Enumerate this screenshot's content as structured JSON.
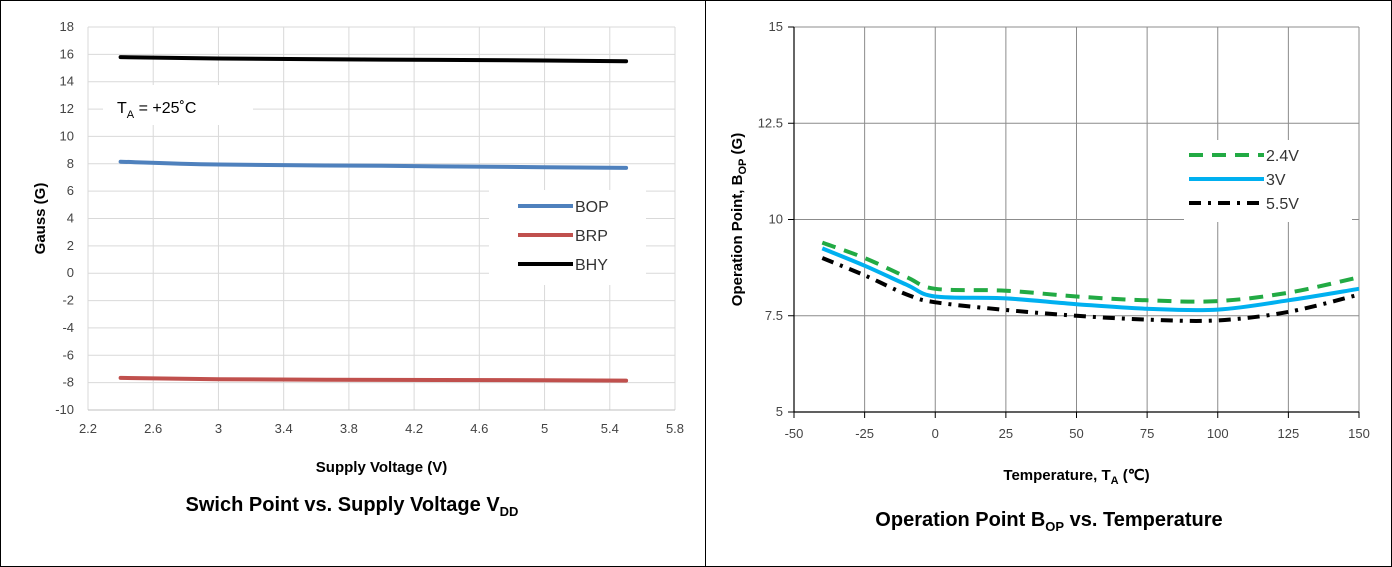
{
  "chart_data": [
    {
      "type": "line",
      "caption": "Swich Point vs. Supply Voltage V",
      "caption_sub": "DD",
      "xlabel": "Supply Voltage (V)",
      "ylabel": "Gauss (G)",
      "xlim": [
        2.2,
        5.8
      ],
      "ylim": [
        -10,
        18
      ],
      "xticks": [
        "2.2",
        "2.6",
        "3",
        "3.4",
        "3.8",
        "4.2",
        "4.6",
        "5",
        "5.4",
        "5.8"
      ],
      "yticks": [
        "-10",
        "-8",
        "-6",
        "-4",
        "-2",
        "0",
        "2",
        "4",
        "6",
        "8",
        "10",
        "12",
        "14",
        "16",
        "18"
      ],
      "grid": true,
      "legend_position": "right",
      "annotation": {
        "prefix": "T",
        "sub": "A",
        "suffix": " = +25˚C"
      },
      "series": [
        {
          "name": "BOP",
          "color": "#4f81bd",
          "x": [
            2.4,
            3,
            4,
            5,
            5.5
          ],
          "y": [
            8.15,
            7.95,
            7.85,
            7.75,
            7.7
          ]
        },
        {
          "name": "BRP",
          "color": "#c0504d",
          "x": [
            2.4,
            3,
            4,
            5,
            5.5
          ],
          "y": [
            -7.65,
            -7.75,
            -7.8,
            -7.82,
            -7.85
          ]
        },
        {
          "name": "BHY",
          "color": "#000000",
          "x": [
            2.4,
            3,
            4,
            5,
            5.5
          ],
          "y": [
            15.8,
            15.7,
            15.62,
            15.55,
            15.5
          ]
        }
      ]
    },
    {
      "type": "line",
      "caption_pre": "Operation Point B",
      "caption_sub": "OP",
      "caption_post": " vs. Temperature",
      "xlabel_pre": "Temperature, T",
      "xlabel_sub": "A",
      "xlabel_post": " (℃)",
      "ylabel_pre": "Operation Point, B",
      "ylabel_sub": "OP",
      "ylabel_post": " (G)",
      "xlim": [
        -50,
        150
      ],
      "ylim": [
        5,
        15
      ],
      "xticks": [
        "-50",
        "-25",
        "0",
        "25",
        "50",
        "75",
        "100",
        "125",
        "150"
      ],
      "yticks": [
        "5",
        "7.5",
        "10",
        "12.5",
        "15"
      ],
      "grid": true,
      "legend_position": "upper-right",
      "series": [
        {
          "name": "2.4V",
          "color": "#22aa44",
          "style": "dashed",
          "x": [
            -40,
            -25,
            -10,
            0,
            25,
            50,
            75,
            100,
            125,
            150
          ],
          "y": [
            9.4,
            9.0,
            8.5,
            8.2,
            8.15,
            8.0,
            7.9,
            7.88,
            8.1,
            8.5
          ]
        },
        {
          "name": "3V",
          "color": "#00b0f0",
          "style": "solid",
          "x": [
            -40,
            -25,
            -10,
            0,
            25,
            50,
            75,
            100,
            125,
            150
          ],
          "y": [
            9.25,
            8.8,
            8.3,
            8.0,
            7.95,
            7.8,
            7.68,
            7.66,
            7.9,
            8.2
          ]
        },
        {
          "name": "5.5V",
          "color": "#000000",
          "style": "dashdot",
          "x": [
            -40,
            -25,
            -10,
            0,
            25,
            50,
            75,
            100,
            125,
            150
          ],
          "y": [
            9.0,
            8.55,
            8.05,
            7.85,
            7.65,
            7.5,
            7.4,
            7.38,
            7.6,
            8.05
          ]
        }
      ]
    }
  ]
}
